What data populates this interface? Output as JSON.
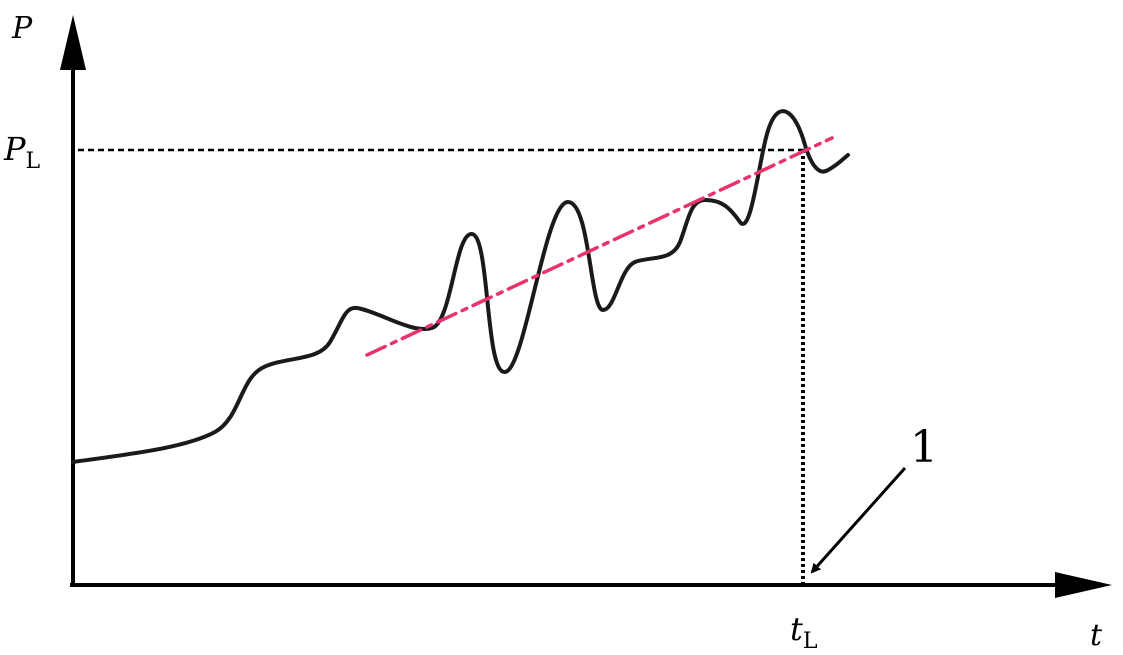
{
  "axes": {
    "y_label": "P",
    "x_label": "t"
  },
  "threshold": {
    "y_label_main": "P",
    "y_label_sub": "L",
    "x_label_main": "t",
    "x_label_sub": "L"
  },
  "callout": {
    "label": "1"
  },
  "colors": {
    "axis": "#000000",
    "curve": "#1a1a1a",
    "trend": "#e8336b",
    "guide": "#000000"
  }
}
